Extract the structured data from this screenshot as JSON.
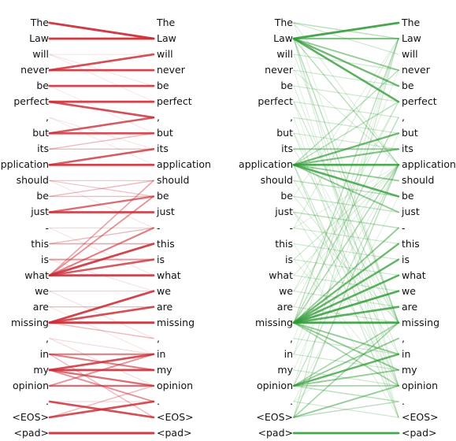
{
  "tokens": [
    "The",
    "Law",
    "will",
    "never",
    "be",
    "perfect",
    ",",
    "but",
    "its",
    "application",
    "should",
    "be",
    "just",
    "-",
    "this",
    "is",
    "what",
    "we",
    "are",
    "missing",
    ",",
    "in",
    "my",
    "opinion",
    ".",
    "<EOS>",
    "<pad>"
  ],
  "colors": {
    "red": "#cc2b35",
    "green": "#2f9a35"
  },
  "red_panel": {
    "edges": [
      [
        0,
        1,
        0.95
      ],
      [
        1,
        1,
        0.95
      ],
      [
        2,
        2,
        0.1
      ],
      [
        3,
        3,
        0.9
      ],
      [
        3,
        2,
        0.85
      ],
      [
        4,
        4,
        0.9
      ],
      [
        5,
        5,
        0.9
      ],
      [
        5,
        6,
        0.85
      ],
      [
        2,
        4,
        0.1
      ],
      [
        6,
        8,
        0.1
      ],
      [
        7,
        7,
        0.85
      ],
      [
        7,
        6,
        0.8
      ],
      [
        8,
        8,
        0.3
      ],
      [
        8,
        7,
        0.3
      ],
      [
        9,
        9,
        0.9
      ],
      [
        9,
        8,
        0.8
      ],
      [
        10,
        10,
        0.25
      ],
      [
        10,
        11,
        0.25
      ],
      [
        11,
        11,
        0.3
      ],
      [
        11,
        10,
        0.3
      ],
      [
        12,
        12,
        0.9
      ],
      [
        12,
        11,
        0.7
      ],
      [
        13,
        13,
        0.15
      ],
      [
        14,
        14,
        0.4
      ],
      [
        14,
        13,
        0.3
      ],
      [
        15,
        15,
        0.5
      ],
      [
        16,
        16,
        0.9
      ],
      [
        16,
        14,
        0.9
      ],
      [
        16,
        15,
        0.8
      ],
      [
        16,
        13,
        0.6
      ],
      [
        16,
        11,
        0.5
      ],
      [
        16,
        10,
        0.4
      ],
      [
        17,
        17,
        0.2
      ],
      [
        18,
        18,
        0.3
      ],
      [
        19,
        19,
        0.95
      ],
      [
        19,
        17,
        0.9
      ],
      [
        19,
        18,
        0.85
      ],
      [
        19,
        20,
        0.3
      ],
      [
        20,
        21,
        0.15
      ],
      [
        21,
        21,
        0.6
      ],
      [
        21,
        22,
        0.6
      ],
      [
        21,
        25,
        0.3
      ],
      [
        22,
        22,
        0.9
      ],
      [
        22,
        21,
        0.85
      ],
      [
        22,
        23,
        0.7
      ],
      [
        22,
        24,
        0.5
      ],
      [
        23,
        23,
        0.7
      ],
      [
        23,
        21,
        0.5
      ],
      [
        24,
        24,
        0.15
      ],
      [
        24,
        25,
        0.85
      ],
      [
        25,
        24,
        0.85
      ],
      [
        25,
        23,
        0.3
      ],
      [
        26,
        26,
        0.95
      ],
      [
        2,
        5,
        0.08
      ],
      [
        4,
        7,
        0.08
      ],
      [
        6,
        9,
        0.08
      ],
      [
        10,
        13,
        0.1
      ],
      [
        13,
        16,
        0.1
      ],
      [
        15,
        17,
        0.12
      ],
      [
        17,
        20,
        0.12
      ],
      [
        20,
        23,
        0.15
      ],
      [
        18,
        21,
        0.1
      ]
    ]
  },
  "green_panel": {
    "edges": [
      [
        1,
        0,
        0.9
      ],
      [
        1,
        1,
        0.6
      ],
      [
        1,
        5,
        0.8
      ],
      [
        1,
        4,
        0.7
      ],
      [
        1,
        3,
        0.5
      ],
      [
        1,
        9,
        0.3
      ],
      [
        1,
        19,
        0.3
      ],
      [
        0,
        1,
        0.3
      ],
      [
        0,
        2,
        0.2
      ],
      [
        9,
        9,
        0.85
      ],
      [
        9,
        7,
        0.7
      ],
      [
        9,
        8,
        0.6
      ],
      [
        9,
        11,
        0.8
      ],
      [
        9,
        10,
        0.5
      ],
      [
        9,
        12,
        0.5
      ],
      [
        9,
        5,
        0.3
      ],
      [
        9,
        3,
        0.3
      ],
      [
        8,
        8,
        0.5
      ],
      [
        10,
        11,
        0.3
      ],
      [
        12,
        13,
        0.3
      ],
      [
        19,
        19,
        0.9
      ],
      [
        19,
        18,
        0.8
      ],
      [
        19,
        17,
        0.85
      ],
      [
        19,
        16,
        0.8
      ],
      [
        19,
        15,
        0.75
      ],
      [
        19,
        14,
        0.7
      ],
      [
        19,
        13,
        0.5
      ],
      [
        19,
        21,
        0.5
      ],
      [
        19,
        22,
        0.5
      ],
      [
        19,
        23,
        0.4
      ],
      [
        19,
        9,
        0.35
      ],
      [
        19,
        6,
        0.3
      ],
      [
        19,
        1,
        0.3
      ],
      [
        23,
        21,
        0.75
      ],
      [
        23,
        20,
        0.5
      ],
      [
        23,
        22,
        0.5
      ],
      [
        23,
        23,
        0.4
      ],
      [
        23,
        19,
        0.4
      ],
      [
        23,
        24,
        0.3
      ],
      [
        23,
        9,
        0.25
      ],
      [
        25,
        19,
        0.4
      ],
      [
        25,
        23,
        0.5
      ],
      [
        25,
        24,
        0.3
      ],
      [
        25,
        9,
        0.3
      ],
      [
        25,
        1,
        0.2
      ],
      [
        26,
        26,
        0.9
      ],
      [
        2,
        3,
        0.2
      ],
      [
        3,
        4,
        0.2
      ],
      [
        4,
        5,
        0.2
      ],
      [
        5,
        6,
        0.2
      ],
      [
        6,
        7,
        0.2
      ],
      [
        7,
        8,
        0.2
      ],
      [
        11,
        12,
        0.25
      ],
      [
        13,
        14,
        0.2
      ],
      [
        14,
        15,
        0.2
      ],
      [
        15,
        16,
        0.2
      ],
      [
        16,
        17,
        0.2
      ],
      [
        17,
        18,
        0.2
      ],
      [
        18,
        19,
        0.2
      ],
      [
        20,
        21,
        0.2
      ],
      [
        21,
        22,
        0.2
      ],
      [
        22,
        23,
        0.2
      ],
      [
        24,
        25,
        0.2
      ],
      [
        3,
        9,
        0.15
      ],
      [
        5,
        19,
        0.2
      ],
      [
        7,
        23,
        0.15
      ],
      [
        9,
        25,
        0.2
      ],
      [
        11,
        19,
        0.15
      ],
      [
        13,
        1,
        0.15
      ],
      [
        15,
        9,
        0.2
      ],
      [
        17,
        5,
        0.15
      ],
      [
        21,
        1,
        0.15
      ],
      [
        1,
        23,
        0.15
      ],
      [
        1,
        25,
        0.15
      ],
      [
        9,
        23,
        0.2
      ],
      [
        2,
        19,
        0.15
      ],
      [
        4,
        21,
        0.15
      ],
      [
        6,
        25,
        0.12
      ],
      [
        8,
        19,
        0.15
      ],
      [
        10,
        21,
        0.15
      ],
      [
        12,
        23,
        0.15
      ],
      [
        14,
        25,
        0.12
      ],
      [
        16,
        9,
        0.15
      ],
      [
        18,
        5,
        0.15
      ],
      [
        20,
        3,
        0.12
      ],
      [
        22,
        7,
        0.12
      ],
      [
        24,
        11,
        0.12
      ],
      [
        0,
        9,
        0.15
      ],
      [
        0,
        19,
        0.12
      ],
      [
        3,
        23,
        0.12
      ],
      [
        5,
        25,
        0.1
      ],
      [
        7,
        19,
        0.12
      ],
      [
        11,
        1,
        0.12
      ],
      [
        13,
        9,
        0.12
      ],
      [
        15,
        23,
        0.12
      ],
      [
        17,
        9,
        0.12
      ],
      [
        21,
        9,
        0.12
      ],
      [
        23,
        1,
        0.12
      ],
      [
        24,
        19,
        0.12
      ],
      [
        12,
        19,
        0.15
      ]
    ]
  }
}
